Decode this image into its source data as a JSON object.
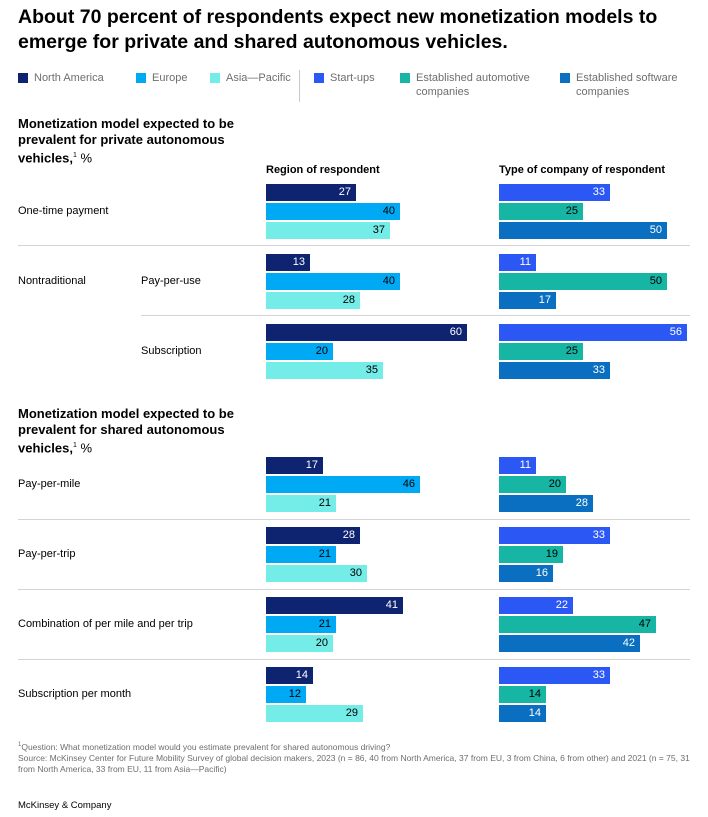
{
  "title": "About 70 percent of respondents expect new monetization models to emerge for private and shared autonomous vehicles.",
  "legend": [
    {
      "label": "North America",
      "color": "#0f2470"
    },
    {
      "label": "Europe",
      "color": "#00a9f4"
    },
    {
      "label": "Asia—Pacific",
      "color": "#74ece7"
    },
    {
      "label": "Start-ups",
      "color": "#2b58f5"
    },
    {
      "label": "Established automotive companies",
      "color": "#16b5a4"
    },
    {
      "label": "Established software companies",
      "color": "#0a6fc0"
    }
  ],
  "columns": {
    "region": "Region of respondent",
    "company": "Type of company of respondent"
  },
  "chart_data": {
    "type": "bar",
    "orientation": "horizontal",
    "unit": "%",
    "xlim": [
      0,
      60
    ],
    "region_series": [
      "North America",
      "Europe",
      "Asia—Pacific"
    ],
    "company_series": [
      "Start-ups",
      "Established automotive companies",
      "Established software companies"
    ],
    "sections": [
      {
        "title": "Monetization model expected to be prevalent for private autonomous vehicles,",
        "footnote_mark": "1",
        "unit_label": " %",
        "group_label": "Nontraditional",
        "rows": [
          {
            "label": "One-time payment",
            "region": [
              27,
              40,
              37
            ],
            "company": [
              33,
              25,
              50
            ]
          },
          {
            "label": "Pay-per-use",
            "region": [
              13,
              40,
              28
            ],
            "company": [
              11,
              50,
              17
            ]
          },
          {
            "label": "Subscription",
            "region": [
              60,
              20,
              35
            ],
            "company": [
              56,
              25,
              33
            ]
          }
        ]
      },
      {
        "title": "Monetization model expected to be prevalent for shared autonomous vehicles,",
        "footnote_mark": "1",
        "unit_label": " %",
        "rows": [
          {
            "label": "Pay-per-mile",
            "region": [
              17,
              46,
              21
            ],
            "company": [
              11,
              20,
              28
            ]
          },
          {
            "label": "Pay-per-trip",
            "region": [
              28,
              21,
              30
            ],
            "company": [
              33,
              19,
              16
            ]
          },
          {
            "label": "Combination of per mile and per trip",
            "region": [
              41,
              21,
              20
            ],
            "company": [
              22,
              47,
              42
            ]
          },
          {
            "label": "Subscription per month",
            "region": [
              14,
              12,
              29
            ],
            "company": [
              33,
              14,
              14
            ]
          }
        ]
      }
    ]
  },
  "footnote": {
    "mark": "1",
    "question": "Question: What monetization model would you estimate prevalent for shared autonomous driving?",
    "source": "Source: McKinsey Center for Future Mobility Survey of global decision makers, 2023 (n = 86, 40 from North America, 37 from EU, 3 from China, 6 from other) and 2021 (n = 75, 31 from North America, 33 from EU, 11 from Asia—Pacific)"
  },
  "brand": "McKinsey & Company"
}
